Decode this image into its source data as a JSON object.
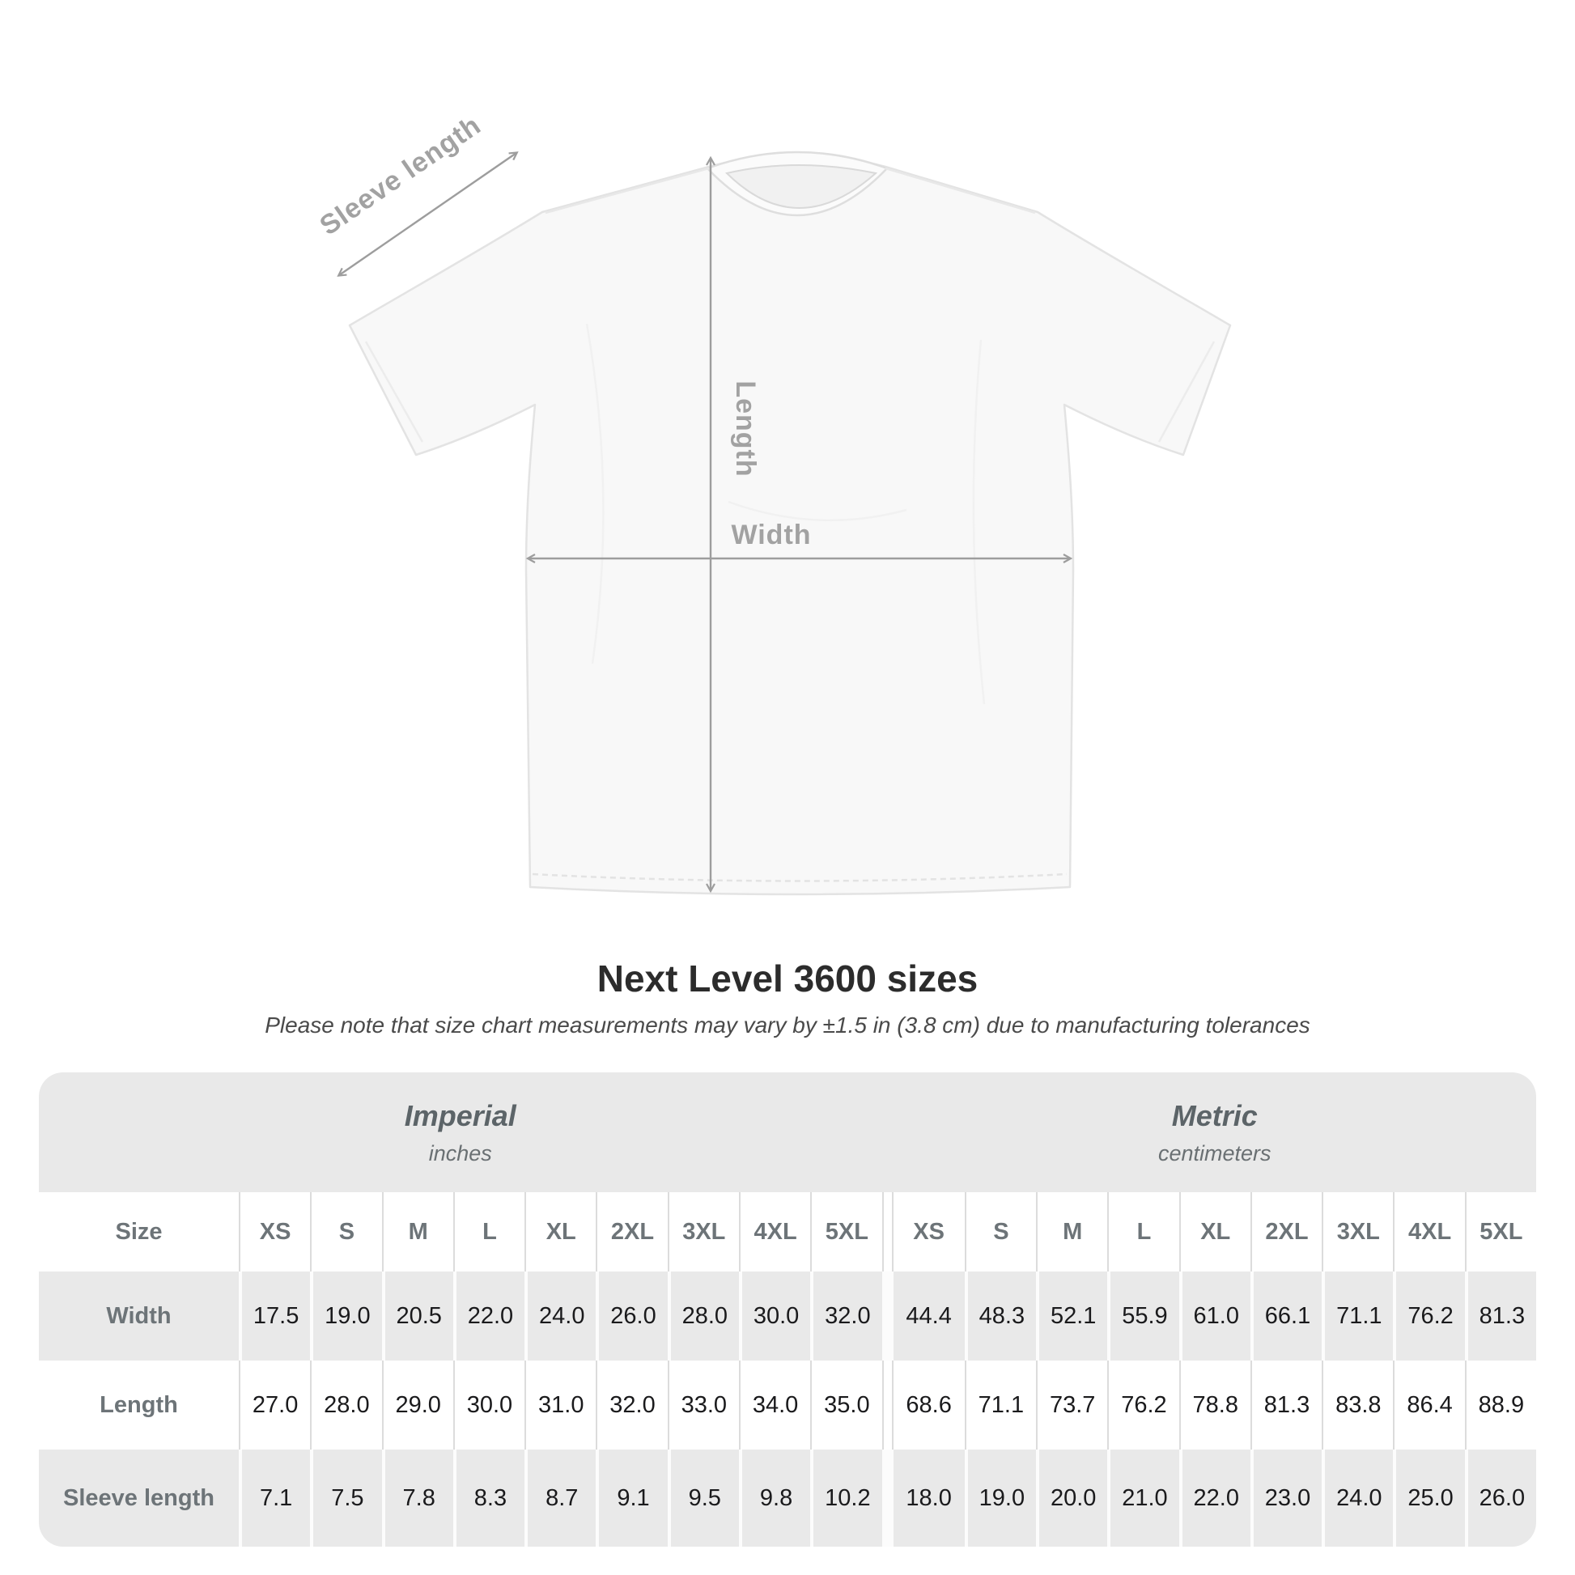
{
  "title": "Next Level 3600 sizes",
  "subtitle": "Please note that size chart measurements may vary by ±1.5 in (3.8 cm) due to manufacturing tolerances",
  "diagram": {
    "sleeve_label": "Sleeve length",
    "length_label": "Length",
    "width_label": "Width",
    "arrow_color": "#9d9d9d",
    "label_color": "#a2a2a2"
  },
  "table": {
    "unit_groups": [
      {
        "name": "Imperial",
        "unit": "inches"
      },
      {
        "name": "Metric",
        "unit": "centimeters"
      }
    ],
    "size_label": "Size",
    "sizes": [
      "XS",
      "S",
      "M",
      "L",
      "XL",
      "2XL",
      "3XL",
      "4XL",
      "5XL"
    ],
    "rows": [
      {
        "label": "Width",
        "imperial": [
          "17.5",
          "19.0",
          "20.5",
          "22.0",
          "24.0",
          "26.0",
          "28.0",
          "30.0",
          "32.0"
        ],
        "metric": [
          "44.4",
          "48.3",
          "52.1",
          "55.9",
          "61.0",
          "66.1",
          "71.1",
          "76.2",
          "81.3"
        ]
      },
      {
        "label": "Length",
        "imperial": [
          "27.0",
          "28.0",
          "29.0",
          "30.0",
          "31.0",
          "32.0",
          "33.0",
          "34.0",
          "35.0"
        ],
        "metric": [
          "68.6",
          "71.1",
          "73.7",
          "76.2",
          "78.8",
          "81.3",
          "83.8",
          "86.4",
          "88.9"
        ]
      },
      {
        "label": "Sleeve length",
        "imperial": [
          "7.1",
          "7.5",
          "7.8",
          "8.3",
          "8.7",
          "9.1",
          "9.5",
          "9.8",
          "10.2"
        ],
        "metric": [
          "18.0",
          "19.0",
          "20.0",
          "21.0",
          "22.0",
          "23.0",
          "24.0",
          "25.0",
          "26.0"
        ]
      }
    ]
  },
  "chart_data": {
    "type": "table",
    "title": "Next Level 3600 sizes",
    "columns": [
      "XS",
      "S",
      "M",
      "L",
      "XL",
      "2XL",
      "3XL",
      "4XL",
      "5XL"
    ],
    "units": [
      "inches",
      "centimeters"
    ],
    "rows": [
      {
        "label": "Width",
        "inches": [
          17.5,
          19.0,
          20.5,
          22.0,
          24.0,
          26.0,
          28.0,
          30.0,
          32.0
        ],
        "centimeters": [
          44.4,
          48.3,
          52.1,
          55.9,
          61.0,
          66.1,
          71.1,
          76.2,
          81.3
        ]
      },
      {
        "label": "Length",
        "inches": [
          27.0,
          28.0,
          29.0,
          30.0,
          31.0,
          32.0,
          33.0,
          34.0,
          35.0
        ],
        "centimeters": [
          68.6,
          71.1,
          73.7,
          76.2,
          78.8,
          81.3,
          83.8,
          86.4,
          88.9
        ]
      },
      {
        "label": "Sleeve length",
        "inches": [
          7.1,
          7.5,
          7.8,
          8.3,
          8.7,
          9.1,
          9.5,
          9.8,
          10.2
        ],
        "centimeters": [
          18.0,
          19.0,
          20.0,
          21.0,
          22.0,
          23.0,
          24.0,
          25.0,
          26.0
        ]
      }
    ]
  }
}
